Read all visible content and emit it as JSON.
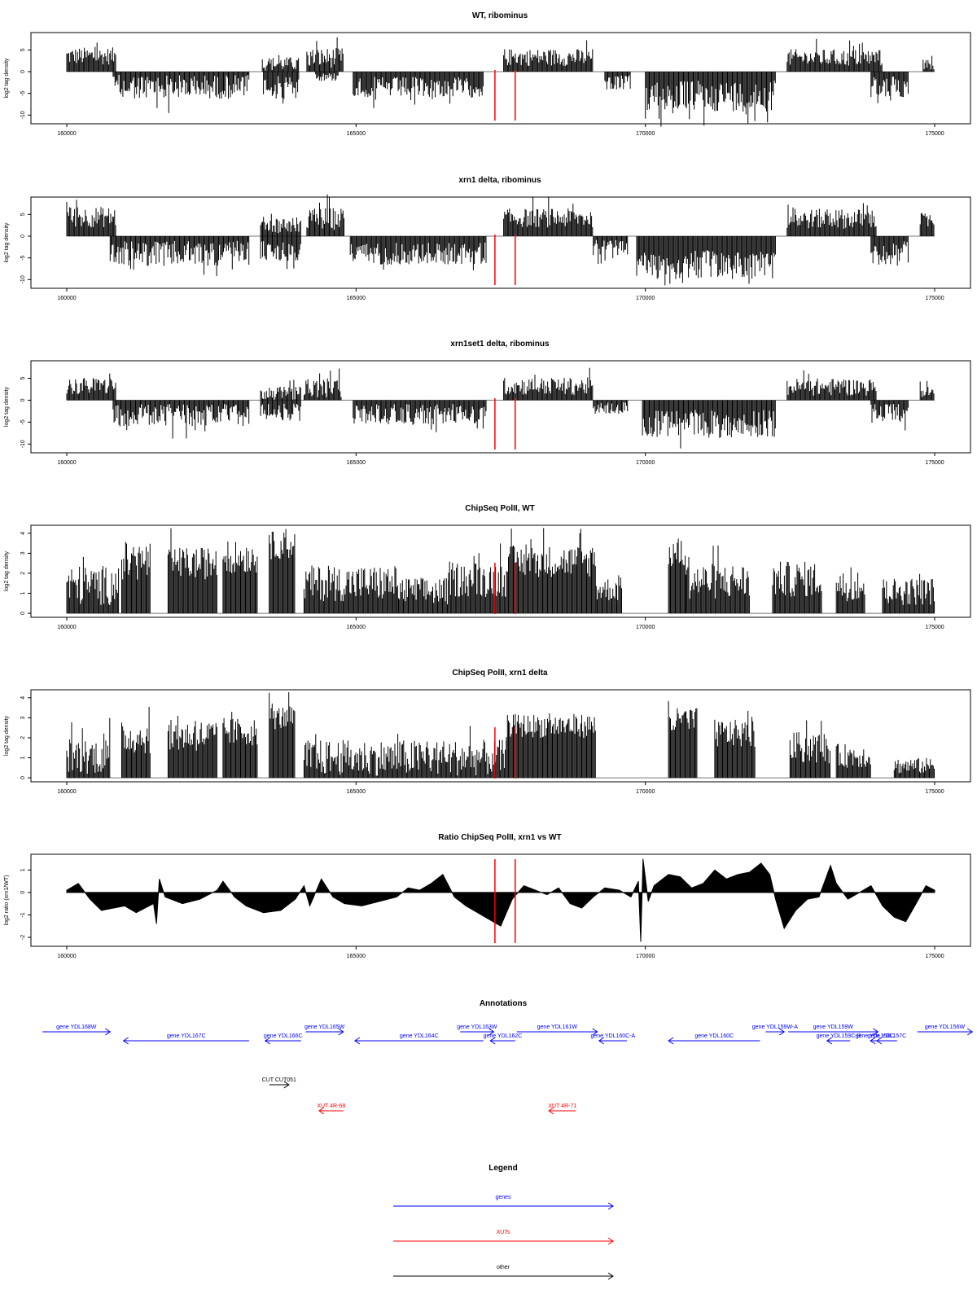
{
  "chart_data": [
    {
      "type": "bar",
      "title": "WT, ribominus",
      "ylabel": "log2 tag density",
      "xlim": [
        160000,
        175000
      ],
      "ylim": [
        -12,
        9
      ],
      "yticks": [
        -10,
        -5,
        0,
        5
      ],
      "ytick_labels": [
        "-10",
        "-5",
        "0",
        "5"
      ],
      "xticks": [
        160000,
        165000,
        170000,
        175000
      ],
      "xtick_labels": [
        "160000",
        "165000",
        "170000",
        "175000"
      ],
      "markers": [
        167400,
        167750
      ],
      "segments": [
        {
          "x0": 160000,
          "x1": 160850,
          "sign": 1,
          "level": 3.6,
          "var": 2.0
        },
        {
          "x0": 160800,
          "x1": 163150,
          "sign": -1,
          "level": 3.5,
          "var": 2.8
        },
        {
          "x0": 163380,
          "x1": 164020,
          "sign": 1,
          "level": 1.8,
          "var": 1.6
        },
        {
          "x0": 163400,
          "x1": 164020,
          "sign": -1,
          "level": 3.2,
          "var": 2.2
        },
        {
          "x0": 164150,
          "x1": 164780,
          "sign": 1,
          "level": 3.2,
          "var": 2.3
        },
        {
          "x0": 164300,
          "x1": 164700,
          "sign": -1,
          "level": 1.2,
          "var": 1.0
        },
        {
          "x0": 164950,
          "x1": 167200,
          "sign": -1,
          "level": 3.6,
          "var": 2.4
        },
        {
          "x0": 167550,
          "x1": 169100,
          "sign": 1,
          "level": 3.3,
          "var": 2.0
        },
        {
          "x0": 169300,
          "x1": 169750,
          "sign": -1,
          "level": 2.5,
          "var": 1.7
        },
        {
          "x0": 170000,
          "x1": 172250,
          "sign": -1,
          "level": 5.6,
          "var": 3.6
        },
        {
          "x0": 172450,
          "x1": 174100,
          "sign": 1,
          "level": 3.2,
          "var": 2.0
        },
        {
          "x0": 173900,
          "x1": 174550,
          "sign": -1,
          "level": 3.5,
          "var": 2.5
        },
        {
          "x0": 174800,
          "x1": 175000,
          "sign": 1,
          "level": 1.5,
          "var": 1.3
        }
      ]
    },
    {
      "type": "bar",
      "title": "xrn1 delta, ribominus",
      "ylabel": "log2 tag density",
      "xlim": [
        160000,
        175000
      ],
      "ylim": [
        -12,
        9
      ],
      "yticks": [
        -10,
        -5,
        0,
        5
      ],
      "ytick_labels": [
        "-10",
        "-5",
        "0",
        "5"
      ],
      "xticks": [
        160000,
        165000,
        170000,
        175000
      ],
      "xtick_labels": [
        "160000",
        "165000",
        "170000",
        "175000"
      ],
      "markers": [
        167400,
        167750
      ],
      "segments": [
        {
          "x0": 160000,
          "x1": 160850,
          "sign": 1,
          "level": 4.4,
          "var": 2.4
        },
        {
          "x0": 160750,
          "x1": 163150,
          "sign": -1,
          "level": 4.0,
          "var": 2.9
        },
        {
          "x0": 163350,
          "x1": 164050,
          "sign": 1,
          "level": 2.6,
          "var": 1.9
        },
        {
          "x0": 163350,
          "x1": 164050,
          "sign": -1,
          "level": 3.4,
          "var": 2.3
        },
        {
          "x0": 164150,
          "x1": 164800,
          "sign": 1,
          "level": 4.0,
          "var": 2.6
        },
        {
          "x0": 164900,
          "x1": 167250,
          "sign": -1,
          "level": 4.0,
          "var": 2.6
        },
        {
          "x0": 167550,
          "x1": 169100,
          "sign": 1,
          "level": 4.2,
          "var": 2.2
        },
        {
          "x0": 169100,
          "x1": 169700,
          "sign": -1,
          "level": 2.6,
          "var": 1.8
        },
        {
          "x0": 169850,
          "x1": 172250,
          "sign": -1,
          "level": 6.6,
          "var": 3.4
        },
        {
          "x0": 172450,
          "x1": 174000,
          "sign": 1,
          "level": 4.0,
          "var": 2.3
        },
        {
          "x0": 173900,
          "x1": 174550,
          "sign": -1,
          "level": 4.0,
          "var": 2.8
        },
        {
          "x0": 174750,
          "x1": 175000,
          "sign": 1,
          "level": 3.5,
          "var": 1.8
        }
      ]
    },
    {
      "type": "bar",
      "title": "xrn1set1 delta, ribominus",
      "ylabel": "log2 tag density",
      "xlim": [
        160000,
        175000
      ],
      "ylim": [
        -12,
        9
      ],
      "yticks": [
        -10,
        -5,
        0,
        5
      ],
      "ytick_labels": [
        "-10",
        "-5",
        "0",
        "5"
      ],
      "xticks": [
        160000,
        165000,
        170000,
        175000
      ],
      "xtick_labels": [
        "160000",
        "165000",
        "170000",
        "175000"
      ],
      "markers": [
        167400,
        167750
      ],
      "segments": [
        {
          "x0": 160000,
          "x1": 160850,
          "sign": 1,
          "level": 3.2,
          "var": 2.0
        },
        {
          "x0": 160800,
          "x1": 163150,
          "sign": -1,
          "level": 3.4,
          "var": 2.6
        },
        {
          "x0": 163350,
          "x1": 164050,
          "sign": 1,
          "level": 1.6,
          "var": 1.5
        },
        {
          "x0": 163350,
          "x1": 164050,
          "sign": -1,
          "level": 2.8,
          "var": 2.0
        },
        {
          "x0": 164100,
          "x1": 164750,
          "sign": 1,
          "level": 2.8,
          "var": 2.2
        },
        {
          "x0": 164950,
          "x1": 167250,
          "sign": -1,
          "level": 3.2,
          "var": 2.3
        },
        {
          "x0": 167550,
          "x1": 169100,
          "sign": 1,
          "level": 3.2,
          "var": 2.0
        },
        {
          "x0": 169100,
          "x1": 169700,
          "sign": -1,
          "level": 1.8,
          "var": 1.4
        },
        {
          "x0": 169950,
          "x1": 172250,
          "sign": -1,
          "level": 5.4,
          "var": 3.2
        },
        {
          "x0": 172450,
          "x1": 174000,
          "sign": 1,
          "level": 3.0,
          "var": 2.0
        },
        {
          "x0": 173900,
          "x1": 174550,
          "sign": -1,
          "level": 3.0,
          "var": 2.2
        },
        {
          "x0": 174750,
          "x1": 175000,
          "sign": 1,
          "level": 2.0,
          "var": 1.3
        }
      ]
    },
    {
      "type": "bar",
      "title": "ChipSeq PolII, WT",
      "ylabel": "log2 tag density",
      "xlim": [
        160000,
        175000
      ],
      "ylim": [
        -0.2,
        4.4
      ],
      "yticks": [
        0,
        1,
        2,
        3,
        4
      ],
      "ytick_labels": [
        "0",
        "1",
        "2",
        "3",
        "4"
      ],
      "xticks": [
        160000,
        165000,
        170000,
        175000
      ],
      "xtick_labels": [
        "160000",
        "165000",
        "170000",
        "175000"
      ],
      "markers": [
        167400,
        167750
      ],
      "segments": [
        {
          "x0": 160000,
          "x1": 160900,
          "sign": 1,
          "level": 1.4,
          "var": 1.0
        },
        {
          "x0": 160950,
          "x1": 161450,
          "sign": 1,
          "level": 2.6,
          "var": 1.0
        },
        {
          "x0": 161750,
          "x1": 162600,
          "sign": 1,
          "level": 2.5,
          "var": 0.8
        },
        {
          "x0": 162700,
          "x1": 163300,
          "sign": 1,
          "level": 2.8,
          "var": 0.8
        },
        {
          "x0": 163500,
          "x1": 163950,
          "sign": 1,
          "level": 3.4,
          "var": 0.7
        },
        {
          "x0": 164100,
          "x1": 165700,
          "sign": 1,
          "level": 1.5,
          "var": 0.9
        },
        {
          "x0": 165700,
          "x1": 166600,
          "sign": 1,
          "level": 1.1,
          "var": 0.7
        },
        {
          "x0": 166600,
          "x1": 167600,
          "sign": 1,
          "level": 1.7,
          "var": 0.9
        },
        {
          "x0": 167600,
          "x1": 169150,
          "sign": 1,
          "level": 2.6,
          "var": 0.8
        },
        {
          "x0": 169150,
          "x1": 169600,
          "sign": 1,
          "level": 1.2,
          "var": 0.6
        },
        {
          "x0": 170400,
          "x1": 170700,
          "sign": 1,
          "level": 3.0,
          "var": 0.8
        },
        {
          "x0": 170700,
          "x1": 171800,
          "sign": 1,
          "level": 1.6,
          "var": 0.9
        },
        {
          "x0": 172200,
          "x1": 173050,
          "sign": 1,
          "level": 1.7,
          "var": 0.9
        },
        {
          "x0": 173300,
          "x1": 173800,
          "sign": 1,
          "level": 1.3,
          "var": 0.7
        },
        {
          "x0": 174100,
          "x1": 175000,
          "sign": 1,
          "level": 1.1,
          "var": 0.7
        }
      ]
    },
    {
      "type": "bar",
      "title": "ChipSeq PolII, xrn1 delta",
      "ylabel": "log2 tag density",
      "xlim": [
        160000,
        175000
      ],
      "ylim": [
        -0.2,
        4.4
      ],
      "yticks": [
        0,
        1,
        2,
        3,
        4
      ],
      "ytick_labels": [
        "0",
        "1",
        "2",
        "3",
        "4"
      ],
      "xticks": [
        160000,
        165000,
        170000,
        175000
      ],
      "xtick_labels": [
        "160000",
        "165000",
        "170000",
        "175000"
      ],
      "markers": [
        167400,
        167750
      ],
      "segments": [
        {
          "x0": 160000,
          "x1": 160750,
          "sign": 1,
          "level": 1.1,
          "var": 0.9
        },
        {
          "x0": 160950,
          "x1": 161450,
          "sign": 1,
          "level": 2.0,
          "var": 0.8
        },
        {
          "x0": 161750,
          "x1": 162600,
          "sign": 1,
          "level": 2.1,
          "var": 0.8
        },
        {
          "x0": 162700,
          "x1": 163300,
          "sign": 1,
          "level": 2.3,
          "var": 0.7
        },
        {
          "x0": 163500,
          "x1": 163950,
          "sign": 1,
          "level": 3.0,
          "var": 0.6
        },
        {
          "x0": 164100,
          "x1": 167600,
          "sign": 1,
          "level": 1.0,
          "var": 0.9
        },
        {
          "x0": 167600,
          "x1": 169150,
          "sign": 1,
          "level": 2.6,
          "var": 0.6
        },
        {
          "x0": 170400,
          "x1": 170900,
          "sign": 1,
          "level": 2.8,
          "var": 0.7
        },
        {
          "x0": 171200,
          "x1": 171900,
          "sign": 1,
          "level": 2.2,
          "var": 0.7
        },
        {
          "x0": 172500,
          "x1": 173200,
          "sign": 1,
          "level": 1.5,
          "var": 0.8
        },
        {
          "x0": 173300,
          "x1": 173900,
          "sign": 1,
          "level": 1.1,
          "var": 0.6
        },
        {
          "x0": 174300,
          "x1": 175000,
          "sign": 1,
          "level": 0.6,
          "var": 0.4
        }
      ]
    },
    {
      "type": "area",
      "title": "Ratio ChipSeq PolII, xrn1 vs WT",
      "ylabel": "log2 ratio (xrn1/WT)",
      "xlim": [
        160000,
        175000
      ],
      "ylim": [
        -2.4,
        1.7
      ],
      "yticks": [
        -2,
        -1,
        0,
        1
      ],
      "ytick_labels": [
        "-2",
        "-1",
        "0",
        "1"
      ],
      "xticks": [
        160000,
        165000,
        170000,
        175000
      ],
      "xtick_labels": [
        "160000",
        "165000",
        "170000",
        "175000"
      ],
      "markers": [
        167400,
        167750
      ],
      "points": [
        [
          160000,
          0.1
        ],
        [
          160200,
          0.4
        ],
        [
          160400,
          -0.3
        ],
        [
          160600,
          -0.8
        ],
        [
          160800,
          -0.7
        ],
        [
          161000,
          -0.6
        ],
        [
          161200,
          -0.9
        ],
        [
          161500,
          -0.5
        ],
        [
          161550,
          -1.4
        ],
        [
          161600,
          0.6
        ],
        [
          161700,
          -0.2
        ],
        [
          162000,
          -0.5
        ],
        [
          162300,
          -0.3
        ],
        [
          162600,
          0.1
        ],
        [
          162700,
          0.5
        ],
        [
          162900,
          -0.2
        ],
        [
          163100,
          -0.6
        ],
        [
          163400,
          -0.9
        ],
        [
          163700,
          -0.8
        ],
        [
          163950,
          -0.3
        ],
        [
          164100,
          0.3
        ],
        [
          164200,
          -0.6
        ],
        [
          164400,
          0.6
        ],
        [
          164600,
          -0.2
        ],
        [
          164800,
          -0.5
        ],
        [
          165100,
          -0.6
        ],
        [
          165400,
          -0.4
        ],
        [
          165700,
          -0.2
        ],
        [
          165900,
          0.2
        ],
        [
          166100,
          0.1
        ],
        [
          166300,
          0.4
        ],
        [
          166500,
          0.8
        ],
        [
          166700,
          -0.2
        ],
        [
          166900,
          -0.6
        ],
        [
          167100,
          -0.9
        ],
        [
          167300,
          -1.2
        ],
        [
          167500,
          -1.5
        ],
        [
          167700,
          -0.3
        ],
        [
          167900,
          0.3
        ],
        [
          168100,
          0.1
        ],
        [
          168300,
          -0.1
        ],
        [
          168500,
          0.2
        ],
        [
          168700,
          -0.5
        ],
        [
          168900,
          -0.7
        ],
        [
          169100,
          -0.2
        ],
        [
          169300,
          0.2
        ],
        [
          169550,
          0.1
        ],
        [
          169750,
          -0.2
        ],
        [
          169880,
          0.5
        ],
        [
          169920,
          -2.2
        ],
        [
          169960,
          1.5
        ],
        [
          170050,
          -0.4
        ],
        [
          170150,
          0.3
        ],
        [
          170400,
          0.8
        ],
        [
          170600,
          0.7
        ],
        [
          170800,
          0.2
        ],
        [
          171000,
          0.4
        ],
        [
          171200,
          1.0
        ],
        [
          171400,
          0.6
        ],
        [
          171600,
          0.8
        ],
        [
          171800,
          0.9
        ],
        [
          172000,
          1.3
        ],
        [
          172150,
          0.8
        ],
        [
          172250,
          -0.3
        ],
        [
          172400,
          -1.6
        ],
        [
          172600,
          -0.8
        ],
        [
          172800,
          -0.3
        ],
        [
          173000,
          -0.2
        ],
        [
          173200,
          1.2
        ],
        [
          173300,
          0.4
        ],
        [
          173500,
          -0.3
        ],
        [
          173700,
          0.0
        ],
        [
          173900,
          0.3
        ],
        [
          174100,
          -0.6
        ],
        [
          174300,
          -1.1
        ],
        [
          174500,
          -1.3
        ],
        [
          174700,
          -0.4
        ],
        [
          174850,
          0.3
        ],
        [
          175000,
          0.1
        ]
      ]
    }
  ],
  "annotations": {
    "title": "Annotations",
    "genes": [
      {
        "label": "gene YDL168W",
        "x0": 159580,
        "x1": 160750,
        "dir": 1,
        "row": 0
      },
      {
        "label": "gene YDL167C",
        "x0": 160980,
        "x1": 163150,
        "dir": -1,
        "row": 1
      },
      {
        "label": "gene YDL166C",
        "x0": 163430,
        "x1": 164050,
        "dir": -1,
        "row": 1
      },
      {
        "label": "gene YDL165W",
        "x0": 164130,
        "x1": 164780,
        "dir": 1,
        "row": 0
      },
      {
        "label": "gene YDL164C",
        "x0": 164980,
        "x1": 167200,
        "dir": -1,
        "row": 1
      },
      {
        "label": "gene YDL163W",
        "x0": 166800,
        "x1": 167380,
        "dir": 1,
        "row": 0
      },
      {
        "label": "gene YDL162C",
        "x0": 167320,
        "x1": 167750,
        "dir": -1,
        "row": 1
      },
      {
        "label": "gene YDL161W",
        "x0": 167780,
        "x1": 169170,
        "dir": 1,
        "row": 0
      },
      {
        "label": "gene YDL160C-A",
        "x0": 169200,
        "x1": 169680,
        "dir": -1,
        "row": 1
      },
      {
        "label": "gene YDL160C",
        "x0": 170400,
        "x1": 171980,
        "dir": -1,
        "row": 1
      },
      {
        "label": "gene YDL159W-A",
        "x0": 172080,
        "x1": 172400,
        "dir": 1,
        "row": 0
      },
      {
        "label": "gene YDL159W",
        "x0": 172470,
        "x1": 174020,
        "dir": 1,
        "row": 0
      },
      {
        "label": "gene YDL159C-B",
        "x0": 173140,
        "x1": 173540,
        "dir": -1,
        "row": 1
      },
      {
        "label": "gene YDL158C",
        "x0": 173890,
        "x1": 174040,
        "dir": -1,
        "row": 1
      },
      {
        "label": "gene YDL157C",
        "x0": 174000,
        "x1": 174350,
        "dir": -1,
        "row": 1
      },
      {
        "label": "gene YDL156W",
        "x0": 174700,
        "x1": 175650,
        "dir": 1,
        "row": 0
      }
    ],
    "others": [
      {
        "label": "CUT CUT051",
        "x0": 163500,
        "x1": 163840,
        "dir": 1
      }
    ],
    "xuts": [
      {
        "label": "XUT 4R-68",
        "x0": 164360,
        "x1": 164780,
        "dir": -1
      },
      {
        "label": "XUT 4R-71",
        "x0": 168330,
        "x1": 168800,
        "dir": -1
      }
    ]
  },
  "legend": {
    "title": "Legend",
    "items": [
      {
        "label": "genes",
        "color": "#0000ff"
      },
      {
        "label": "XUTs",
        "color": "#ff0000"
      },
      {
        "label": "other",
        "color": "#000000"
      }
    ]
  },
  "colors": {
    "data": "#000000",
    "marker": "#ff0000",
    "gene": "#0000ff",
    "xut": "#ff0000",
    "other": "#000000"
  }
}
